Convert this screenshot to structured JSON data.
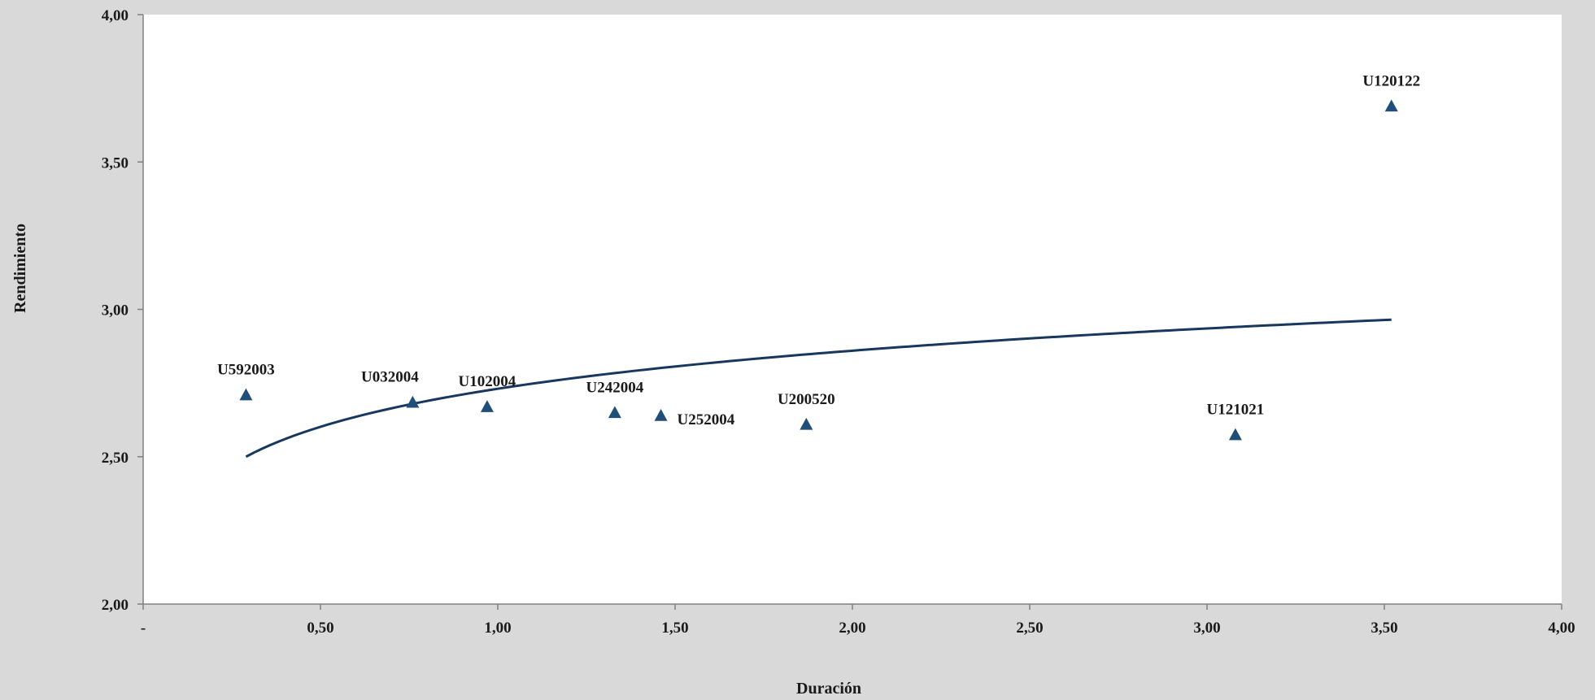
{
  "chart_data": {
    "type": "scatter",
    "title": "",
    "xlabel": "Duración",
    "ylabel": "Rendimiento",
    "xlim": [
      0,
      4
    ],
    "ylim": [
      2,
      4
    ],
    "x_ticks": [
      {
        "value": 0,
        "label": "-"
      },
      {
        "value": 0.5,
        "label": "0,50"
      },
      {
        "value": 1.0,
        "label": "1,00"
      },
      {
        "value": 1.5,
        "label": "1,50"
      },
      {
        "value": 2.0,
        "label": "2,00"
      },
      {
        "value": 2.5,
        "label": "2,50"
      },
      {
        "value": 3.0,
        "label": "3,00"
      },
      {
        "value": 3.5,
        "label": "3,50"
      },
      {
        "value": 4.0,
        "label": "4,00"
      }
    ],
    "y_ticks": [
      {
        "value": 2.0,
        "label": "2,00"
      },
      {
        "value": 2.5,
        "label": "2,50"
      },
      {
        "value": 3.0,
        "label": "3,00"
      },
      {
        "value": 3.5,
        "label": "3,50"
      },
      {
        "value": 4.0,
        "label": "4,00"
      }
    ],
    "grid": false,
    "marker": "triangle",
    "colors": {
      "marker": "#1f4e79",
      "trendline": "#17375e",
      "plot_bg": "#ffffff",
      "chart_bg": "#d9d9d9",
      "axis": "#808080"
    },
    "points": [
      {
        "label": "U592003",
        "x": 0.29,
        "y": 2.71,
        "label_pos": "above"
      },
      {
        "label": "U032004",
        "x": 0.76,
        "y": 2.685,
        "label_pos": "above-left"
      },
      {
        "label": "U102004",
        "x": 0.97,
        "y": 2.67,
        "label_pos": "above"
      },
      {
        "label": "U242004",
        "x": 1.33,
        "y": 2.65,
        "label_pos": "above"
      },
      {
        "label": "U252004",
        "x": 1.46,
        "y": 2.64,
        "label_pos": "right"
      },
      {
        "label": "U200520",
        "x": 1.87,
        "y": 2.61,
        "label_pos": "above"
      },
      {
        "label": "U121021",
        "x": 3.08,
        "y": 2.575,
        "label_pos": "above"
      },
      {
        "label": "U120122",
        "x": 3.52,
        "y": 3.69,
        "label_pos": "above"
      }
    ],
    "trendline": {
      "type": "logarithmic",
      "x_start": 0.29,
      "x_end": 3.52,
      "y_start": 2.5,
      "y_end": 2.965
    }
  }
}
